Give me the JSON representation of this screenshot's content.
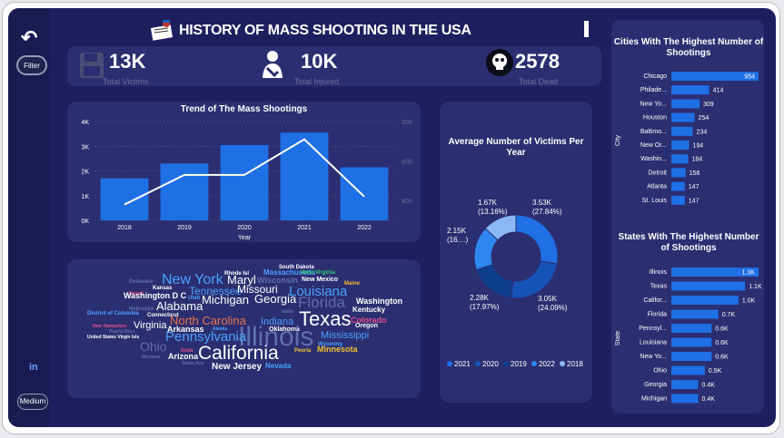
{
  "header": {
    "title": "HISTORY OF MASS SHOOTING IN THE USA"
  },
  "sidebar": {
    "filter_label": "Filter",
    "medium_label": "Medium",
    "linkedin_label": "in"
  },
  "kpis": [
    {
      "value": "13K",
      "label": "Total Victims",
      "icon": "floppy-disk-icon"
    },
    {
      "value": "10K",
      "label": "Total Injured",
      "icon": "injured-person-icon"
    },
    {
      "value": "2578",
      "label": "Total Dead",
      "icon": "skull-icon"
    }
  ],
  "colors": {
    "bg": "#1e1f5e",
    "card": "#2b2e70",
    "bar": "#1f6fe5",
    "line": "#ffffff",
    "text": "#ffffff"
  },
  "chart_data": [
    {
      "type": "bar",
      "title": "Trend of The Mass Shootings",
      "xlabel": "Year",
      "categories": [
        "2018",
        "2019",
        "2020",
        "2021",
        "2022"
      ],
      "series": [
        {
          "values": [
            1700,
            2300,
            3050,
            3550,
            2150
          ]
        },
        {
          "values": [
            380,
            530,
            530,
            710,
            420
          ]
        }
      ],
      "y_ticks": [
        "0K",
        "1K",
        "2K",
        "3K",
        "4K"
      ],
      "y2_ticks": [
        "400",
        "600",
        "800"
      ],
      "ylim": [
        0,
        4000
      ],
      "y2lim": [
        300,
        800
      ],
      "grid": true
    },
    {
      "type": "pie",
      "title": "Average Number of Victims Per Year",
      "categories": [
        "2021",
        "2020",
        "2019",
        "2022",
        "2018"
      ],
      "values": [
        3.53,
        3.05,
        2.28,
        2.15,
        1.67
      ],
      "labels": [
        "3.53K (27.84%)",
        "3.05K (24.09%)",
        "2.28K (17.97%)",
        "2.15K (16....)",
        "1.67K (13.16%)"
      ],
      "legend": [
        "2021",
        "2020",
        "2019",
        "2022",
        "2018"
      ],
      "legend_position": "bottom",
      "colors": [
        "#1f6fe5",
        "#1553b8",
        "#0e3f8f",
        "#2f86f0",
        "#8ab8f5"
      ]
    },
    {
      "type": "bar",
      "orientation": "horizontal",
      "title": "Cities With The Highest Number of Shootings",
      "ylabel": "City",
      "categories": [
        "Chicago",
        "Philade...",
        "New Yo...",
        "Houston",
        "Baltimo...",
        "New Or...",
        "Washin...",
        "Detroit",
        "Atlanta",
        "St. Louis"
      ],
      "values": [
        954,
        414,
        309,
        254,
        234,
        194,
        184,
        156,
        147,
        147
      ],
      "labels": [
        "954",
        "414",
        "309",
        "254",
        "234",
        "194",
        "184",
        "156",
        "147",
        "147"
      ]
    },
    {
      "type": "bar",
      "orientation": "horizontal",
      "title": "States With The Highest Number of Shootings",
      "ylabel": "State",
      "categories": [
        "Illinois",
        "Texas",
        "Califor...",
        "Florida",
        "Pennsyl...",
        "Louisiana",
        "New Yo...",
        "Ohio",
        "Georgia",
        "Michigan"
      ],
      "values": [
        1.3,
        1.1,
        1.0,
        0.7,
        0.6,
        0.6,
        0.6,
        0.5,
        0.4,
        0.4
      ],
      "labels": [
        "1.3K",
        "1.1K",
        "1.0K",
        "0.7K",
        "0.6K",
        "0.6K",
        "0.6K",
        "0.5K",
        "0.4K",
        "0.4K"
      ]
    }
  ],
  "wordcloud": [
    {
      "text": "South Dakota",
      "size": 6,
      "color": "#ffffff"
    },
    {
      "text": "Rhode Isl",
      "size": 6,
      "color": "#ffffff"
    },
    {
      "text": "Massachusetts",
      "size": 8,
      "color": "#4aa3ff"
    },
    {
      "text": "West Virginia",
      "size": 6,
      "color": "#2ecc71"
    },
    {
      "text": "Delaware",
      "size": 6,
      "color": "#5f6fae"
    },
    {
      "text": "New York",
      "size": 16,
      "color": "#4aa3ff"
    },
    {
      "text": "Maryl",
      "size": 13,
      "color": "#ffffff"
    },
    {
      "text": "Wisconsin",
      "size": 9,
      "color": "#5f6fae"
    },
    {
      "text": "New Mexico",
      "size": 7,
      "color": "#ffffff"
    },
    {
      "text": "Maine",
      "size": 6,
      "color": "#f2c230"
    },
    {
      "text": "Kansas",
      "size": 6,
      "color": "#ffffff"
    },
    {
      "text": "Tennessee",
      "size": 12,
      "color": "#4aa3ff"
    },
    {
      "text": "Missouri",
      "size": 12,
      "color": "#ffffff"
    },
    {
      "text": "Louisiana",
      "size": 15,
      "color": "#4aa3ff"
    },
    {
      "text": "Hawaii",
      "size": 5,
      "color": "#e04f8e"
    },
    {
      "text": "Washington D C",
      "size": 9,
      "color": "#ffffff"
    },
    {
      "text": "Utah",
      "size": 6,
      "color": "#4aa3ff"
    },
    {
      "text": "Michigan",
      "size": 13,
      "color": "#ffffff"
    },
    {
      "text": "Georgia",
      "size": 13,
      "color": "#ffffff"
    },
    {
      "text": "Florida",
      "size": 17,
      "color": "#5f6fae"
    },
    {
      "text": "Washington",
      "size": 9,
      "color": "#ffffff"
    },
    {
      "text": "Nebraska",
      "size": 6,
      "color": "#5f6fae"
    },
    {
      "text": "Alabama",
      "size": 13,
      "color": "#ffffff"
    },
    {
      "text": "Kentucky",
      "size": 8,
      "color": "#ffffff"
    },
    {
      "text": "District of Columbia",
      "size": 6,
      "color": "#4aa3ff"
    },
    {
      "text": "Connecticut",
      "size": 6,
      "color": "#ffffff"
    },
    {
      "text": "Idaho",
      "size": 5,
      "color": "#5f6fae"
    },
    {
      "text": "Texas",
      "size": 22,
      "color": "#ffffff"
    },
    {
      "text": "Colorado",
      "size": 9,
      "color": "#e04f8e"
    },
    {
      "text": "North Carolina",
      "size": 13,
      "color": "#e8734a"
    },
    {
      "text": "Indiana",
      "size": 11,
      "color": "#4aa3ff"
    },
    {
      "text": "Oregon",
      "size": 7,
      "color": "#ffffff"
    },
    {
      "text": "New Hampshire",
      "size": 5,
      "color": "#e04f8e"
    },
    {
      "text": "Virginia",
      "size": 11,
      "color": "#ffffff"
    },
    {
      "text": "Alaska",
      "size": 5,
      "color": "#4aa3ff"
    },
    {
      "text": "Oklahoma",
      "size": 7,
      "color": "#ffffff"
    },
    {
      "text": "Puerto Rico",
      "size": 5,
      "color": "#5f6fae"
    },
    {
      "text": "Arkansas",
      "size": 9,
      "color": "#ffffff"
    },
    {
      "text": "Illinois",
      "size": 30,
      "color": "#5f6fae"
    },
    {
      "text": "Mississippi",
      "size": 11,
      "color": "#4aa3ff"
    },
    {
      "text": "United States Virgin Isls",
      "size": 5,
      "color": "#ffffff"
    },
    {
      "text": "Pennsylvania",
      "size": 15,
      "color": "#4aa3ff"
    },
    {
      "text": "Wyoming",
      "size": 6,
      "color": "#4aa3ff"
    },
    {
      "text": "Ohio",
      "size": 14,
      "color": "#5f6fae"
    },
    {
      "text": "Iowa",
      "size": 6,
      "color": "#e04f8e"
    },
    {
      "text": "Minnesota",
      "size": 9,
      "color": "#f2c230"
    },
    {
      "text": "Peoria",
      "size": 6,
      "color": "#f2c230"
    },
    {
      "text": "California",
      "size": 21,
      "color": "#ffffff"
    },
    {
      "text": "Montana",
      "size": 5,
      "color": "#5f6fae"
    },
    {
      "text": "Arizona",
      "size": 9,
      "color": "#ffffff"
    },
    {
      "text": "Santa Ana",
      "size": 5,
      "color": "#5f6fae"
    },
    {
      "text": "New Jersey",
      "size": 10,
      "color": "#ffffff"
    },
    {
      "text": "Nevada",
      "size": 8,
      "color": "#4aa3ff"
    }
  ]
}
